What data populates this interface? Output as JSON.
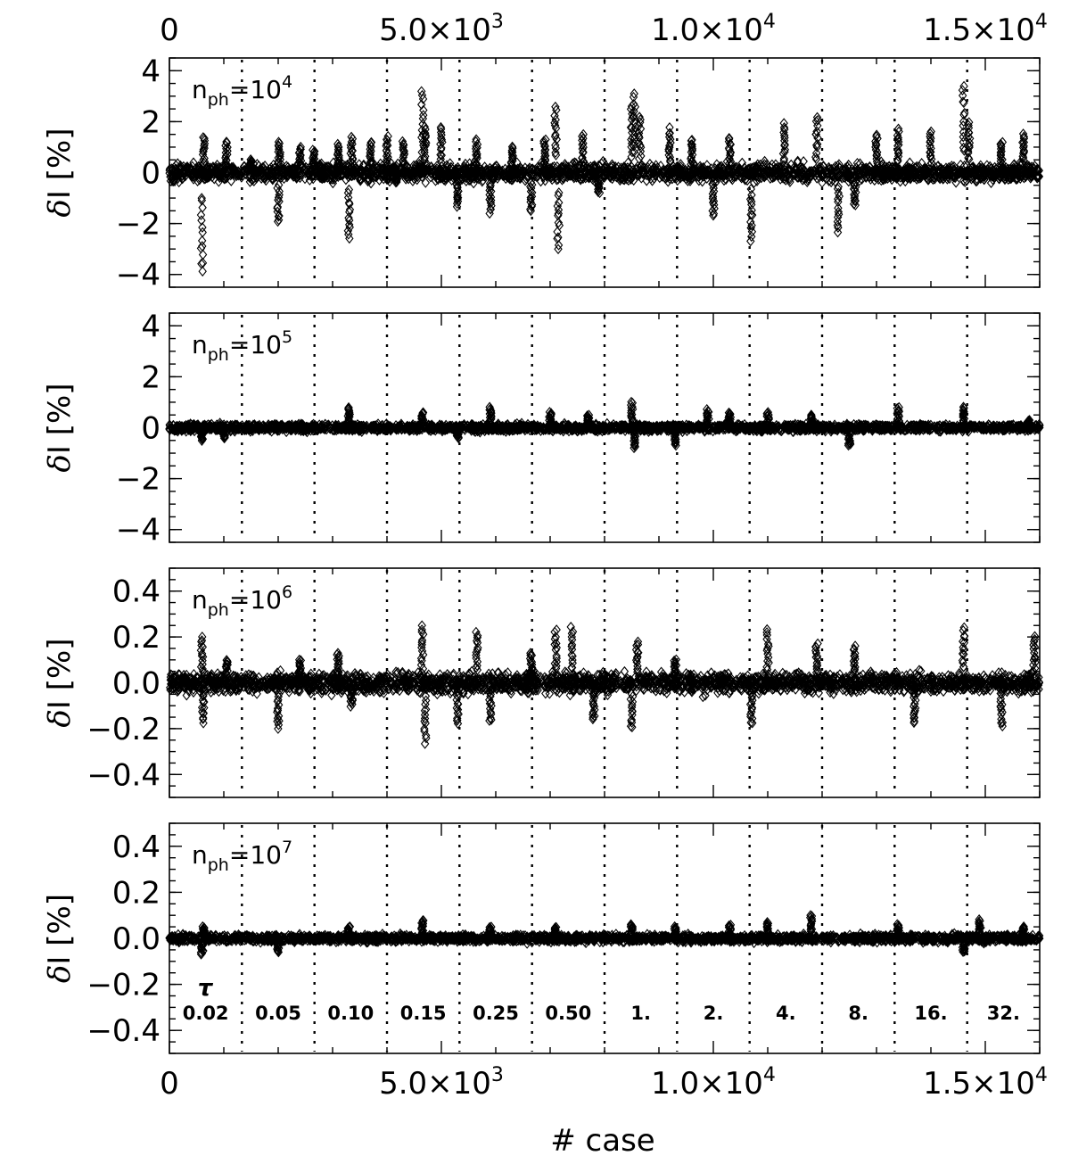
{
  "chart_data": {
    "type": "scatter",
    "marker": "diamond",
    "xlabel": "# case",
    "xlim": [
      0,
      16000
    ],
    "xticks": [
      0,
      5000,
      10000,
      15000
    ],
    "xtick_labels": [
      "0",
      "5.0×10",
      "1.0×10",
      "1.5×10"
    ],
    "xtick_exponents": [
      "",
      "3",
      "4",
      "4"
    ],
    "dividers_x": [
      1333,
      2667,
      4000,
      5333,
      6667,
      8000,
      9333,
      10667,
      12000,
      13333,
      14667
    ],
    "tau_symbol": "τ",
    "tau_labels": [
      "0.02",
      "0.05",
      "0.10",
      "0.15",
      "0.25",
      "0.50",
      "1.",
      "2.",
      "4.",
      "8.",
      "16.",
      "32."
    ],
    "panels": [
      {
        "label_base": "n",
        "label_sub": "ph",
        "label_eq": "=10",
        "label_exp": "4",
        "ylabel_delta": "δ",
        "ylabel_rest": "I [%]",
        "ylim": [
          -4.5,
          4.5
        ],
        "yticks": [
          -4,
          -2,
          0,
          2,
          4
        ],
        "ytick_labels": [
          "−4",
          "−2",
          "0",
          "2",
          "4"
        ],
        "noise_amp": 0.55,
        "spikes": [
          [
            600,
            -3.9
          ],
          [
            630,
            1.4
          ],
          [
            1050,
            1.2
          ],
          [
            1500,
            0.5
          ],
          [
            2000,
            -2.0
          ],
          [
            2020,
            1.2
          ],
          [
            2400,
            1.0
          ],
          [
            2650,
            0.9
          ],
          [
            3100,
            1.1
          ],
          [
            3300,
            -2.6
          ],
          [
            3350,
            1.4
          ],
          [
            3700,
            1.2
          ],
          [
            4000,
            1.4
          ],
          [
            4300,
            1.2
          ],
          [
            4650,
            3.2
          ],
          [
            4700,
            1.8
          ],
          [
            5000,
            1.8
          ],
          [
            5300,
            -1.3
          ],
          [
            5650,
            1.3
          ],
          [
            5900,
            -1.6
          ],
          [
            6300,
            1.0
          ],
          [
            6650,
            -1.5
          ],
          [
            6900,
            1.3
          ],
          [
            7100,
            2.6
          ],
          [
            7150,
            -3.0
          ],
          [
            7600,
            1.5
          ],
          [
            7900,
            -0.8
          ],
          [
            8500,
            2.6
          ],
          [
            8550,
            3.1
          ],
          [
            8650,
            2.2
          ],
          [
            9200,
            1.7
          ],
          [
            9600,
            1.3
          ],
          [
            10000,
            -1.7
          ],
          [
            10300,
            1.4
          ],
          [
            10700,
            -2.7
          ],
          [
            11300,
            1.9
          ],
          [
            11900,
            2.2
          ],
          [
            12300,
            -2.3
          ],
          [
            12600,
            -1.3
          ],
          [
            13000,
            1.5
          ],
          [
            13400,
            1.7
          ],
          [
            14000,
            1.6
          ],
          [
            14600,
            3.4
          ],
          [
            14700,
            2.0
          ],
          [
            15300,
            1.2
          ],
          [
            15700,
            1.5
          ]
        ]
      },
      {
        "label_base": "n",
        "label_sub": "ph",
        "label_eq": "=10",
        "label_exp": "5",
        "ylabel_delta": "δ",
        "ylabel_rest": "I [%]",
        "ylim": [
          -4.5,
          4.5
        ],
        "yticks": [
          -4,
          -2,
          0,
          2,
          4
        ],
        "ytick_labels": [
          "−4",
          "−2",
          "0",
          "2",
          "4"
        ],
        "noise_amp": 0.22,
        "spikes": [
          [
            600,
            -0.5
          ],
          [
            1000,
            -0.4
          ],
          [
            3300,
            0.8
          ],
          [
            4650,
            0.6
          ],
          [
            5300,
            -0.4
          ],
          [
            5900,
            0.8
          ],
          [
            7000,
            0.6
          ],
          [
            7700,
            0.5
          ],
          [
            8500,
            1.0
          ],
          [
            8550,
            -0.8
          ],
          [
            9300,
            -0.7
          ],
          [
            9900,
            0.7
          ],
          [
            10300,
            0.6
          ],
          [
            11000,
            0.6
          ],
          [
            11800,
            0.5
          ],
          [
            12500,
            -0.7
          ],
          [
            13400,
            0.8
          ],
          [
            14600,
            0.8
          ],
          [
            15800,
            0.3
          ]
        ]
      },
      {
        "label_base": "n",
        "label_sub": "ph",
        "label_eq": "=10",
        "label_exp": "6",
        "ylabel_delta": "δ",
        "ylabel_rest": "I [%]",
        "ylim": [
          -0.5,
          0.5
        ],
        "yticks": [
          -0.4,
          -0.2,
          0.0,
          0.2,
          0.4
        ],
        "ytick_labels": [
          "−0.4",
          "−0.2",
          "0.0",
          "0.2",
          "0.4"
        ],
        "noise_amp": 0.07,
        "spikes": [
          [
            600,
            0.2
          ],
          [
            620,
            -0.17
          ],
          [
            1050,
            0.1
          ],
          [
            2000,
            -0.2
          ],
          [
            2400,
            0.1
          ],
          [
            3100,
            0.13
          ],
          [
            3350,
            -0.1
          ],
          [
            4650,
            0.25
          ],
          [
            4700,
            -0.26
          ],
          [
            5300,
            -0.18
          ],
          [
            5650,
            0.22
          ],
          [
            5900,
            -0.17
          ],
          [
            6650,
            0.13
          ],
          [
            7100,
            0.23
          ],
          [
            7400,
            0.24
          ],
          [
            7800,
            -0.16
          ],
          [
            8500,
            -0.2
          ],
          [
            8600,
            0.18
          ],
          [
            9300,
            0.1
          ],
          [
            10700,
            -0.18
          ],
          [
            11000,
            0.23
          ],
          [
            11900,
            0.17
          ],
          [
            12600,
            0.16
          ],
          [
            13700,
            -0.18
          ],
          [
            14600,
            0.24
          ],
          [
            15300,
            -0.19
          ],
          [
            15900,
            0.2
          ]
        ]
      },
      {
        "label_base": "n",
        "label_sub": "ph",
        "label_eq": "=10",
        "label_exp": "7",
        "ylabel_delta": "δ",
        "ylabel_rest": "I [%]",
        "ylim": [
          -0.5,
          0.5
        ],
        "yticks": [
          -0.4,
          -0.2,
          0.0,
          0.2,
          0.4
        ],
        "ytick_labels": [
          "−0.4",
          "−0.2",
          "0.0",
          "0.2",
          "0.4"
        ],
        "noise_amp": 0.025,
        "spikes": [
          [
            600,
            -0.07
          ],
          [
            630,
            0.05
          ],
          [
            2000,
            -0.06
          ],
          [
            3300,
            0.05
          ],
          [
            4650,
            0.08
          ],
          [
            5900,
            0.05
          ],
          [
            7100,
            0.05
          ],
          [
            8500,
            0.06
          ],
          [
            9300,
            0.05
          ],
          [
            10300,
            0.06
          ],
          [
            11000,
            0.07
          ],
          [
            11800,
            0.1
          ],
          [
            13400,
            0.06
          ],
          [
            14600,
            -0.06
          ],
          [
            14900,
            0.08
          ],
          [
            15700,
            0.05
          ]
        ]
      }
    ]
  }
}
